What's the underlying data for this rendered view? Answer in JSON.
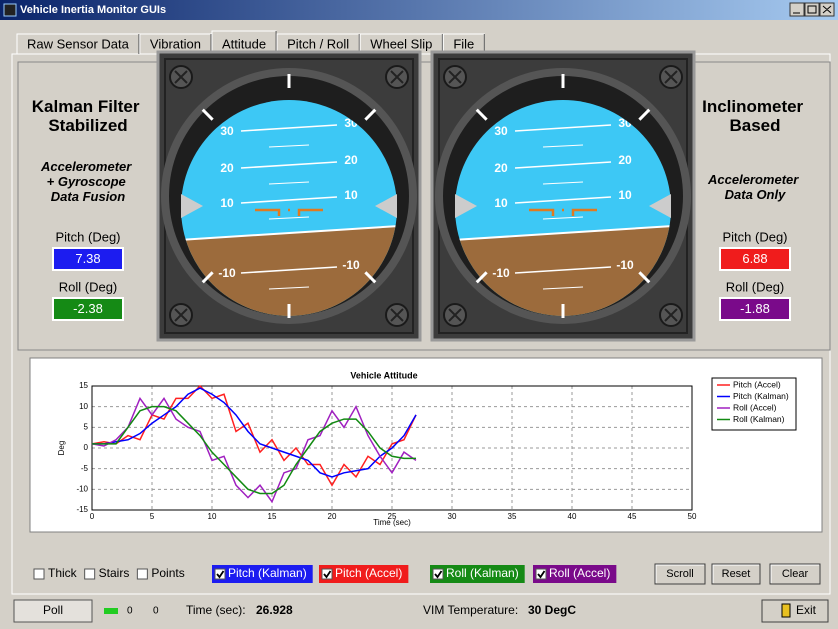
{
  "window": {
    "title": "Vehicle Inertia Monitor GUIs"
  },
  "tabs": [
    "Raw Sensor Data",
    "Vibration",
    "Attitude",
    "Pitch / Roll",
    "Wheel Slip",
    "File"
  ],
  "selected_tab": 2,
  "left_panel": {
    "title": "Kalman Filter Stabilized",
    "subtitle": "Accelerometer + Gyroscope Data Fusion",
    "pitch_label": "Pitch (Deg)",
    "pitch": 7.38,
    "pitch_color": "#1c1cf0",
    "roll_label": "Roll (Deg)",
    "roll": -2.38,
    "roll_color": "#158a15"
  },
  "right_panel": {
    "title": "Inclinometer Based",
    "subtitle": "Accelerometer Data Only",
    "pitch_label": "Pitch (Deg)",
    "pitch": 6.88,
    "pitch_color": "#f01c1c",
    "roll_label": "Roll (Deg)",
    "roll": -1.88,
    "roll_color": "#7a0a8a"
  },
  "attitude_indicator": {
    "ladder": [
      "30",
      "20",
      "10",
      "-10"
    ]
  },
  "chart_data": {
    "type": "line",
    "title": "Vehicle Attitude",
    "x_label": "Time (sec)",
    "y_label": "Deg",
    "xlim": [
      0,
      50
    ],
    "xticks": [
      0,
      5,
      10,
      15,
      20,
      25,
      30,
      35,
      40,
      45,
      50
    ],
    "ylim": [
      -15,
      15
    ],
    "yticks": [
      -15,
      -10,
      -5,
      0,
      5,
      10,
      15
    ],
    "grid": true,
    "legend": "right",
    "x": [
      0,
      1,
      2,
      3,
      4,
      5,
      6,
      7,
      8,
      9,
      10,
      11,
      12,
      13,
      14,
      15,
      16,
      17,
      18,
      19,
      20,
      21,
      22,
      23,
      24,
      25,
      26,
      27
    ],
    "series": [
      {
        "name": "Pitch (Accel)",
        "color": "#ff2020",
        "values": [
          1,
          1.5,
          1,
          3,
          2,
          8,
          7,
          12,
          12,
          15,
          12,
          13,
          4,
          6,
          -1,
          2,
          -3,
          0,
          -4,
          -4,
          -9,
          -4,
          -7,
          -2,
          -4,
          1,
          2,
          8
        ]
      },
      {
        "name": "Pitch (Kalman)",
        "color": "#0000ff",
        "values": [
          1,
          1,
          1.5,
          2,
          3.5,
          6,
          8,
          10,
          13,
          14.5,
          13,
          11,
          8,
          4,
          1,
          0,
          -1,
          -2,
          -3,
          -6,
          -7,
          -6,
          -5.5,
          -5,
          -2,
          0,
          3,
          8
        ]
      },
      {
        "name": "Roll (Accel)",
        "color": "#a020c0",
        "values": [
          1,
          0.5,
          2,
          5,
          12,
          8,
          12,
          7,
          5,
          4,
          -3,
          -2,
          -9,
          -12,
          -9,
          -13,
          -6,
          -5,
          2,
          3,
          9,
          5,
          10,
          3,
          -2,
          -6,
          -1,
          -3
        ]
      },
      {
        "name": "Roll (Kalman)",
        "color": "#128a12",
        "values": [
          1,
          1,
          1,
          5,
          9,
          10,
          10,
          9,
          6,
          3,
          -1,
          -4,
          -7,
          -10,
          -11,
          -11,
          -9,
          -4,
          0,
          4,
          6,
          7,
          7,
          4,
          0,
          -2,
          -2.5,
          -2.5
        ]
      }
    ]
  },
  "controls": {
    "options": [
      "Thick",
      "Stairs",
      "Points"
    ],
    "toggles": [
      {
        "label": "Pitch (Kalman)",
        "color": "#1c1cf0"
      },
      {
        "label": "Pitch (Accel)",
        "color": "#f01c1c"
      },
      {
        "label": "Roll (Kalman)",
        "color": "#158a15"
      },
      {
        "label": "Roll (Accel)",
        "color": "#7a0a8a"
      }
    ],
    "buttons": [
      "Scroll",
      "Reset",
      "Clear"
    ]
  },
  "status": {
    "poll": "Poll",
    "counts": [
      0,
      0
    ],
    "time_label": "Time (sec):",
    "time": 26.928,
    "temp_label": "VIM Temperature:",
    "temp": "30 DegC",
    "exit": "Exit"
  }
}
